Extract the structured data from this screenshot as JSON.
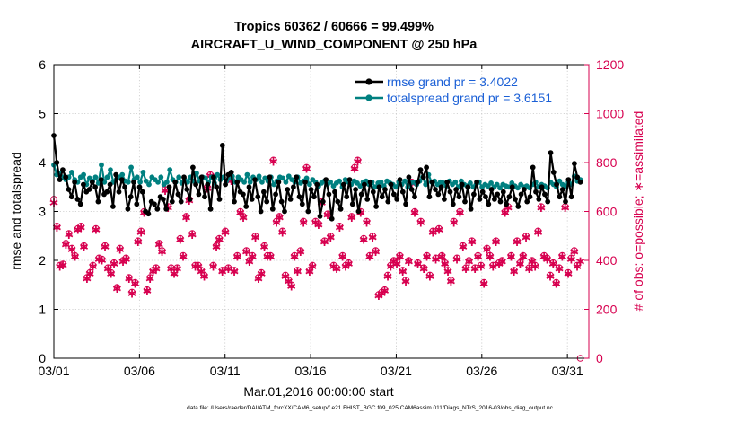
{
  "chart_data": {
    "type": "line",
    "title": "Tropics 60362 / 60666 = 99.499%",
    "subtitle": "AIRCRAFT_U_WIND_COMPONENT @ 250 hPa",
    "xlabel": "Mar.01,2016 00:00:00 start",
    "ylabel": "rmse and totalspread",
    "ylabel_right": "# of obs: o=possible; ∗=assimilated",
    "footer": "data file: /Users/raeder/DAI/ATM_forcXX/CAM6_setup/f.e21.FHIST_BGC.f09_025.CAM6assim.011/Diags_NTrS_2016-03/obs_diag_output.nc",
    "x_tick_labels": [
      "03/01",
      "03/06",
      "03/11",
      "03/16",
      "03/21",
      "03/26",
      "03/31"
    ],
    "x_tick_days": [
      0,
      5,
      10,
      15,
      20,
      25,
      30
    ],
    "xlim": [
      0,
      31.25
    ],
    "ylim": [
      0,
      6
    ],
    "y_ticks": [
      0,
      1,
      2,
      3,
      4,
      5,
      6
    ],
    "ylim_right": [
      0,
      1200
    ],
    "y_ticks_right": [
      0,
      200,
      400,
      600,
      800,
      1000,
      1200
    ],
    "grid": true,
    "legend_position": "top-right",
    "colors": {
      "rmse": "#000000",
      "totalspread": "#008080",
      "obs": "#d7004f",
      "legend_text": "#1a5fd6"
    },
    "series": [
      {
        "name": "rmse grand pr = 3.4022",
        "axis": "left",
        "marker": "dot",
        "values": [
          4.55,
          4.0,
          3.65,
          3.85,
          3.7,
          3.45,
          3.3,
          3.6,
          3.25,
          3.15,
          3.55,
          3.4,
          3.45,
          3.6,
          3.5,
          3.2,
          3.65,
          3.35,
          3.4,
          3.55,
          3.1,
          3.75,
          3.4,
          3.65,
          3.5,
          3.05,
          3.3,
          3.6,
          3.15,
          3.5,
          3.4,
          3.0,
          2.95,
          3.2,
          3.15,
          3.05,
          3.3,
          3.25,
          3.05,
          3.5,
          3.2,
          3.6,
          3.35,
          3.2,
          3.7,
          3.45,
          3.25,
          3.9,
          3.55,
          3.35,
          3.7,
          3.3,
          3.55,
          3.05,
          3.7,
          3.5,
          3.25,
          4.35,
          3.55,
          3.75,
          3.8,
          3.2,
          3.6,
          3.4,
          3.35,
          3.1,
          3.5,
          3.25,
          3.65,
          3.3,
          3.0,
          3.4,
          3.2,
          3.7,
          3.05,
          3.35,
          3.6,
          3.2,
          3.0,
          3.45,
          3.25,
          3.5,
          3.7,
          3.3,
          3.15,
          3.6,
          3.0,
          3.45,
          3.3,
          3.55,
          2.9,
          3.2,
          3.65,
          3.35,
          2.85,
          3.4,
          3.2,
          3.05,
          3.55,
          3.3,
          3.65,
          3.15,
          3.45,
          3.0,
          3.35,
          3.55,
          3.25,
          3.6,
          3.4,
          3.1,
          3.5,
          3.3,
          3.45,
          3.2,
          3.55,
          3.35,
          3.25,
          3.65,
          3.4,
          3.15,
          3.7,
          3.45,
          3.3,
          3.6,
          3.85,
          3.7,
          3.9,
          3.3,
          3.6,
          3.45,
          3.35,
          3.5,
          3.25,
          3.6,
          3.4,
          3.15,
          3.45,
          3.3,
          3.55,
          3.2,
          3.5,
          3.05,
          3.35,
          3.6,
          3.25,
          3.4,
          3.3,
          3.15,
          3.45,
          3.25,
          3.35,
          3.2,
          3.4,
          3.15,
          3.3,
          3.5,
          3.25,
          3.1,
          3.35,
          3.45,
          3.2,
          3.3,
          3.9,
          3.4,
          3.25,
          3.5,
          3.35,
          3.2,
          4.2,
          3.8,
          3.55,
          3.3,
          3.45,
          3.2,
          3.65,
          3.3,
          3.98,
          3.7,
          3.6
        ]
      },
      {
        "name": "totalspread grand pr = 3.6151",
        "axis": "left",
        "marker": "dot",
        "values": [
          3.95,
          3.75,
          3.78,
          3.7,
          3.65,
          3.7,
          3.8,
          3.65,
          3.6,
          3.7,
          3.75,
          3.55,
          3.68,
          3.62,
          3.7,
          3.58,
          3.95,
          3.6,
          3.7,
          3.85,
          3.6,
          3.65,
          3.7,
          3.75,
          3.62,
          3.6,
          3.9,
          3.65,
          3.7,
          3.6,
          3.8,
          3.62,
          3.55,
          3.7,
          3.65,
          3.6,
          3.7,
          3.55,
          3.6,
          3.85,
          3.65,
          3.6,
          3.7,
          3.58,
          3.65,
          3.6,
          3.7,
          3.62,
          3.78,
          3.62,
          3.7,
          3.68,
          3.6,
          3.7,
          3.58,
          3.75,
          3.65,
          3.7,
          3.62,
          3.68,
          3.72,
          3.6,
          3.7,
          3.65,
          3.6,
          3.75,
          3.6,
          3.7,
          3.65,
          3.72,
          3.6,
          3.68,
          3.62,
          3.7,
          3.55,
          3.62,
          3.7,
          3.68,
          3.6,
          3.72,
          3.65,
          3.6,
          3.7,
          3.58,
          3.62,
          3.68,
          3.55,
          3.65,
          3.6,
          3.52,
          3.58,
          3.62,
          3.55,
          3.6,
          3.52,
          3.58,
          3.62,
          3.5,
          3.65,
          3.6,
          3.55,
          3.62,
          3.58,
          3.52,
          3.6,
          3.62,
          3.55,
          3.6,
          3.5,
          3.58,
          3.6,
          3.52,
          3.62,
          3.58,
          3.55,
          3.5,
          3.6,
          3.55,
          3.62,
          3.5,
          3.58,
          3.6,
          3.55,
          3.62,
          3.7,
          3.55,
          3.75,
          3.6,
          3.62,
          3.55,
          3.6,
          3.58,
          3.52,
          3.62,
          3.55,
          3.6,
          3.5,
          3.62,
          3.55,
          3.52,
          3.58,
          3.5,
          3.55,
          3.6,
          3.5,
          3.55,
          3.52,
          3.58,
          3.5,
          3.55,
          3.48,
          3.55,
          3.52,
          3.5,
          3.58,
          3.52,
          3.48,
          3.55,
          3.5,
          3.52,
          3.48,
          3.55,
          3.6,
          3.5,
          3.55,
          3.52,
          3.48,
          3.6,
          3.55,
          3.5,
          3.62,
          3.55,
          3.52,
          3.6,
          3.55,
          3.72,
          3.62,
          3.65
        ]
      },
      {
        "name": "assimilated obs count",
        "axis": "right",
        "marker": "asterisk",
        "values": [
          640,
          540,
          380,
          385,
          470,
          510,
          450,
          420,
          530,
          540,
          460,
          330,
          350,
          380,
          530,
          410,
          405,
          460,
          370,
          350,
          390,
          290,
          450,
          400,
          410,
          330,
          270,
          310,
          480,
          520,
          600,
          280,
          330,
          360,
          370,
          470,
          440,
          690,
          620,
          370,
          350,
          370,
          490,
          420,
          580,
          650,
          510,
          380,
          380,
          360,
          340,
          700,
          750,
          380,
          460,
          490,
          360,
          520,
          370,
          730,
          360,
          420,
          600,
          580,
          440,
          400,
          420,
          500,
          330,
          350,
          460,
          420,
          420,
          810,
          560,
          580,
          520,
          340,
          320,
          300,
          420,
          360,
          440,
          560,
          780,
          360,
          380,
          560,
          550,
          640,
          480,
          590,
          500,
          380,
          370,
          540,
          420,
          380,
          390,
          580,
          780,
          810,
          600,
          490,
          560,
          420,
          500,
          440,
          260,
          270,
          280,
          340,
          380,
          400,
          390,
          420,
          360,
          320,
          400,
          720,
          600,
          390,
          560,
          370,
          420,
          340,
          520,
          410,
          530,
          420,
          390,
          360,
          320,
          560,
          410,
          600,
          460,
          370,
          400,
          480,
          370,
          420,
          380,
          310,
          450,
          420,
          380,
          480,
          390,
          400,
          600,
          620,
          420,
          360,
          480,
          390,
          420,
          500,
          370,
          400,
          380,
          520,
          620,
          420,
          410,
          340,
          390,
          310,
          370,
          420,
          620,
          350,
          410,
          440,
          380,
          400
        ]
      },
      {
        "name": "possible obs count",
        "axis": "right",
        "marker": "circle",
        "values": [
          650,
          540,
          380,
          385,
          470,
          510,
          450,
          420,
          530,
          540,
          460,
          330,
          350,
          380,
          530,
          410,
          405,
          460,
          370,
          350,
          390,
          290,
          450,
          400,
          410,
          330,
          270,
          310,
          480,
          520,
          600,
          280,
          330,
          360,
          370,
          470,
          440,
          690,
          620,
          370,
          350,
          370,
          490,
          420,
          580,
          650,
          510,
          380,
          380,
          360,
          340,
          700,
          750,
          380,
          460,
          490,
          360,
          520,
          370,
          730,
          360,
          420,
          600,
          580,
          440,
          400,
          420,
          500,
          330,
          350,
          460,
          420,
          420,
          810,
          560,
          580,
          520,
          340,
          320,
          300,
          420,
          360,
          440,
          560,
          780,
          360,
          380,
          560,
          550,
          640,
          480,
          590,
          500,
          380,
          370,
          540,
          420,
          380,
          390,
          580,
          780,
          810,
          600,
          490,
          560,
          420,
          500,
          440,
          260,
          270,
          280,
          340,
          380,
          400,
          390,
          420,
          360,
          320,
          400,
          720,
          600,
          390,
          560,
          370,
          420,
          340,
          520,
          410,
          530,
          420,
          390,
          360,
          320,
          560,
          410,
          600,
          460,
          370,
          400,
          480,
          370,
          420,
          380,
          310,
          450,
          420,
          380,
          480,
          390,
          400,
          600,
          620,
          420,
          360,
          480,
          390,
          420,
          500,
          370,
          400,
          380,
          520,
          620,
          420,
          410,
          340,
          390,
          310,
          370,
          420,
          620,
          350,
          410,
          440,
          380,
          0
        ]
      }
    ],
    "legend": [
      {
        "label": "rmse grand pr = 3.4022",
        "series": "rmse"
      },
      {
        "label": "totalspread grand pr = 3.6151",
        "series": "totalspread"
      }
    ]
  }
}
